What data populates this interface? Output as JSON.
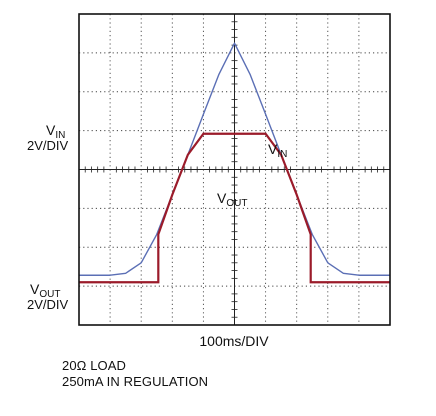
{
  "chart_data": {
    "type": "line",
    "xlabel": "100ms/DIV",
    "x_divisions": 10,
    "y_divisions": 8,
    "grid": true,
    "x_unit": "div",
    "y_unit": "div",
    "series": [
      {
        "name": "V",
        "name_sub": "IN",
        "color": "#5b6fb5",
        "x": [
          0,
          1.0,
          1.5,
          2.0,
          2.5,
          3.0,
          3.5,
          4.0,
          4.5,
          5.0,
          5.5,
          6.0,
          6.5,
          7.0,
          7.5,
          8.0,
          8.5,
          9.0,
          10.0
        ],
        "y": [
          1.28,
          1.28,
          1.33,
          1.6,
          2.33,
          3.35,
          4.38,
          5.42,
          6.45,
          7.25,
          6.45,
          5.42,
          4.38,
          3.35,
          2.33,
          1.6,
          1.33,
          1.28,
          1.28
        ]
      },
      {
        "name": "V",
        "name_sub": "OUT",
        "color": "#9b1b2a",
        "x": [
          0,
          2.55,
          2.55,
          3.0,
          3.5,
          4.0,
          6.0,
          6.5,
          7.0,
          7.45,
          7.45,
          10.0
        ],
        "y": [
          1.1,
          1.1,
          2.33,
          3.35,
          4.38,
          4.92,
          4.92,
          4.38,
          3.35,
          2.33,
          1.1,
          1.1
        ]
      }
    ],
    "channel_labels": [
      {
        "name": "V",
        "sub": "IN",
        "scale": "2V/DIV"
      },
      {
        "name": "V",
        "sub": "OUT",
        "scale": "2V/DIV"
      }
    ],
    "trace_labels": [
      {
        "name": "V",
        "sub": "IN"
      },
      {
        "name": "V",
        "sub": "OUT"
      }
    ]
  },
  "notes": {
    "line1": "20Ω LOAD",
    "line2": "250mA IN REGULATION"
  }
}
